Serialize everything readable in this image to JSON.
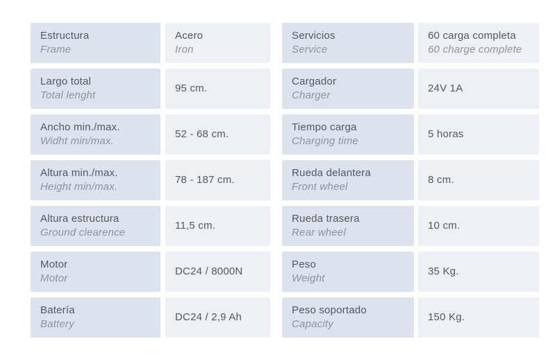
{
  "colors": {
    "page_background": "#ffffff",
    "label_cell_background": "#dce3ee",
    "value_cell_background": "#edf1f6",
    "primary_text": "#54575c",
    "translation_text": "#8e939a"
  },
  "table": {
    "left": [
      {
        "label": "Estructura",
        "translation": "Frame",
        "value": "Acero",
        "value_translation": "Iron"
      },
      {
        "label": "Largo total",
        "translation": "Total lenght",
        "value": "95 cm.",
        "value_translation": ""
      },
      {
        "label": "Ancho min./max.",
        "translation": "Widht min/max.",
        "value": "52 - 68 cm.",
        "value_translation": ""
      },
      {
        "label": "Altura min./max.",
        "translation": "Height min/max.",
        "value": "78 - 187 cm.",
        "value_translation": ""
      },
      {
        "label": "Altura estructura",
        "translation": "Ground clearence",
        "value": "11,5 cm.",
        "value_translation": ""
      },
      {
        "label": "Motor",
        "translation": "Motor",
        "value": "DC24 / 8000N",
        "value_translation": ""
      },
      {
        "label": "Batería",
        "translation": "Battery",
        "value": "DC24 / 2,9 Ah",
        "value_translation": ""
      }
    ],
    "right": [
      {
        "label": "Servicios",
        "translation": "Service",
        "value": "60 carga completa",
        "value_translation": "60 charge complete"
      },
      {
        "label": "Cargador",
        "translation": "Charger",
        "value": "24V 1A",
        "value_translation": ""
      },
      {
        "label": "Tiempo carga",
        "translation": "Charging time",
        "value": "5 horas",
        "value_translation": ""
      },
      {
        "label": "Rueda delantera",
        "translation": "Front wheel",
        "value": "8 cm.",
        "value_translation": ""
      },
      {
        "label": "Rueda trasera",
        "translation": "Rear wheel",
        "value": "10 cm.",
        "value_translation": ""
      },
      {
        "label": "Peso",
        "translation": "Weight",
        "value": "35 Kg.",
        "value_translation": ""
      },
      {
        "label": "Peso soportado",
        "translation": "Capacity",
        "value": "150 Kg.",
        "value_translation": ""
      }
    ]
  }
}
